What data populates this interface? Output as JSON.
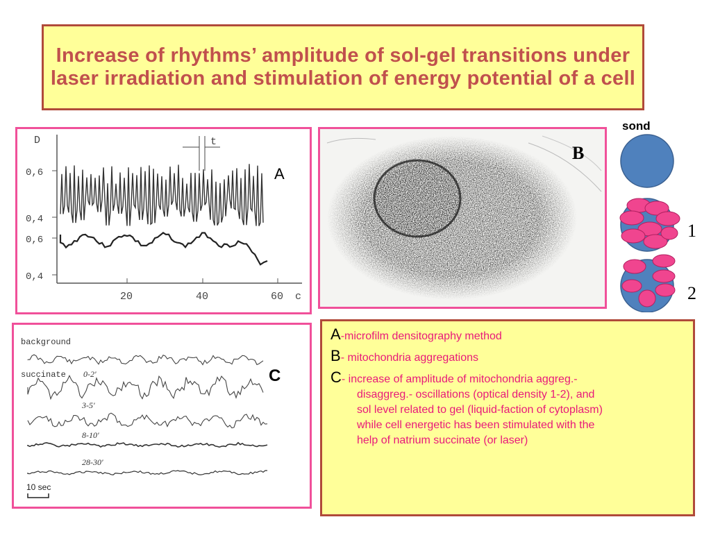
{
  "slide": {
    "title": "Increase of rhythms’ amplitude of sol-gel transitions under laser irradiation and stimulation of energy potential of a cell"
  },
  "panel_a": {
    "letter": "A",
    "y_axis_label": "D",
    "y_ticks_top": [
      "0,6",
      "0,4"
    ],
    "y_ticks_bottom": [
      "0,6",
      "0,4"
    ],
    "x_ticks": [
      "20",
      "40",
      "60"
    ],
    "x_unit": "c",
    "interval_label": "t"
  },
  "panel_b": {
    "letter": "B"
  },
  "panel_c": {
    "letter": "C",
    "traces": [
      {
        "label": "background"
      },
      {
        "label": "succinate",
        "time": "0-2'"
      },
      {
        "time": "3-5'"
      },
      {
        "time": "8-10'"
      },
      {
        "time": "28-30'"
      }
    ],
    "scale_label": "10 sec"
  },
  "schematic": {
    "sond_label": "sond",
    "state_1": "1",
    "state_2": "2",
    "colors": {
      "cell": "#4f81bd",
      "mito": "#f0458f"
    }
  },
  "legend": {
    "a_letter": "A",
    "a_text": "-microfilm densitography method",
    "b_letter": "B",
    "b_text": "- mitochondria aggregations",
    "c_letter": "C",
    "c_text_first": "- increase of amplitude of mitochondria aggreg.-",
    "c_text_lines": [
      "disaggreg.- oscillations (optical density 1-2), and",
      "sol level related to gel (liquid-faction of cytoplasm)",
      "while cell energetic has been stimulated with the",
      "help of natrium succinate (or laser)"
    ]
  },
  "colors": {
    "title_text": "#c0504d",
    "title_border": "#b04a3a",
    "title_bg": "#ffff99",
    "panel_border": "#f0509a",
    "legend_text": "#e8197a"
  }
}
